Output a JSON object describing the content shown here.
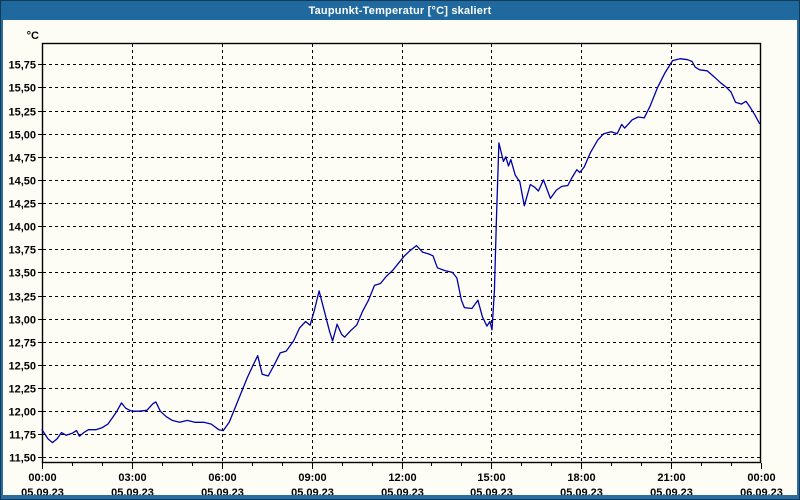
{
  "window": {
    "title": "Taupunkt-Temperatur [°C] skaliert",
    "title_bar_color": "#1f699e",
    "frame_color": "#2a6ba0",
    "outline_color": "#123a58",
    "background_color": "#fdfdf5"
  },
  "chart_data": {
    "type": "line",
    "title": "Taupunkt-Temperatur [°C] skaliert",
    "grid": "dashed",
    "plot_bg": "#fdfdf5",
    "line_color": "#0000aa",
    "y_axis": {
      "unit_label": "°C",
      "ylim": [
        11.44,
        15.98
      ],
      "tick_step": 0.25,
      "ticks": [
        {
          "value": 11.5,
          "label": "11,50"
        },
        {
          "value": 11.75,
          "label": "11,75"
        },
        {
          "value": 12.0,
          "label": "12,00"
        },
        {
          "value": 12.25,
          "label": "12,25"
        },
        {
          "value": 12.5,
          "label": "12,50"
        },
        {
          "value": 12.75,
          "label": "12,75"
        },
        {
          "value": 13.0,
          "label": "13,00"
        },
        {
          "value": 13.25,
          "label": "13,25"
        },
        {
          "value": 13.5,
          "label": "13,50"
        },
        {
          "value": 13.75,
          "label": "13,75"
        },
        {
          "value": 14.0,
          "label": "14,00"
        },
        {
          "value": 14.25,
          "label": "14,25"
        },
        {
          "value": 14.5,
          "label": "14,50"
        },
        {
          "value": 14.75,
          "label": "14,75"
        },
        {
          "value": 15.0,
          "label": "15,00"
        },
        {
          "value": 15.25,
          "label": "15,25"
        },
        {
          "value": 15.5,
          "label": "15,50"
        },
        {
          "value": 15.75,
          "label": "15,75"
        }
      ]
    },
    "x_axis": {
      "xlim_hours": [
        0,
        24
      ],
      "minor_tick_hours": 1,
      "ticks": [
        {
          "hour": 0,
          "time": "00:00",
          "date": "05.09.23"
        },
        {
          "hour": 3,
          "time": "03:00",
          "date": "05.09.23"
        },
        {
          "hour": 6,
          "time": "06:00",
          "date": "05.09.23"
        },
        {
          "hour": 9,
          "time": "09:00",
          "date": "05.09.23"
        },
        {
          "hour": 12,
          "time": "12:00",
          "date": "05.09.23"
        },
        {
          "hour": 15,
          "time": "15:00",
          "date": "05.09.23"
        },
        {
          "hour": 18,
          "time": "18:00",
          "date": "05.09.23"
        },
        {
          "hour": 21,
          "time": "21:00",
          "date": "05.09.23"
        },
        {
          "hour": 24,
          "time": "00:00",
          "date": "06.09.23"
        }
      ]
    },
    "series": [
      {
        "name": "Taupunkt-Temperatur",
        "color": "#0000aa",
        "points": [
          [
            0.0,
            11.8
          ],
          [
            0.2,
            11.7
          ],
          [
            0.35,
            11.66
          ],
          [
            0.5,
            11.7
          ],
          [
            0.65,
            11.77
          ],
          [
            0.8,
            11.74
          ],
          [
            1.0,
            11.76
          ],
          [
            1.15,
            11.79
          ],
          [
            1.25,
            11.73
          ],
          [
            1.4,
            11.77
          ],
          [
            1.55,
            11.8
          ],
          [
            1.8,
            11.8
          ],
          [
            2.0,
            11.82
          ],
          [
            2.2,
            11.86
          ],
          [
            2.35,
            11.93
          ],
          [
            2.5,
            12.0
          ],
          [
            2.65,
            12.09
          ],
          [
            2.8,
            12.03
          ],
          [
            3.0,
            12.0
          ],
          [
            3.25,
            12.0
          ],
          [
            3.5,
            12.01
          ],
          [
            3.7,
            12.08
          ],
          [
            3.8,
            12.1
          ],
          [
            3.95,
            12.0
          ],
          [
            4.15,
            11.94
          ],
          [
            4.35,
            11.9
          ],
          [
            4.6,
            11.88
          ],
          [
            4.85,
            11.9
          ],
          [
            5.1,
            11.88
          ],
          [
            5.4,
            11.88
          ],
          [
            5.65,
            11.86
          ],
          [
            5.9,
            11.8
          ],
          [
            6.05,
            11.79
          ],
          [
            6.25,
            11.88
          ],
          [
            6.4,
            12.0
          ],
          [
            6.6,
            12.16
          ],
          [
            6.85,
            12.36
          ],
          [
            7.05,
            12.5
          ],
          [
            7.2,
            12.6
          ],
          [
            7.35,
            12.4
          ],
          [
            7.55,
            12.38
          ],
          [
            7.75,
            12.5
          ],
          [
            7.95,
            12.63
          ],
          [
            8.15,
            12.65
          ],
          [
            8.4,
            12.76
          ],
          [
            8.6,
            12.9
          ],
          [
            8.8,
            12.97
          ],
          [
            8.95,
            12.93
          ],
          [
            9.1,
            13.1
          ],
          [
            9.25,
            13.3
          ],
          [
            9.45,
            13.05
          ],
          [
            9.6,
            12.86
          ],
          [
            9.7,
            12.76
          ],
          [
            9.85,
            12.94
          ],
          [
            10.0,
            12.83
          ],
          [
            10.1,
            12.8
          ],
          [
            10.3,
            12.87
          ],
          [
            10.5,
            12.93
          ],
          [
            10.7,
            13.08
          ],
          [
            10.9,
            13.2
          ],
          [
            11.1,
            13.36
          ],
          [
            11.3,
            13.38
          ],
          [
            11.5,
            13.46
          ],
          [
            11.7,
            13.52
          ],
          [
            11.9,
            13.6
          ],
          [
            12.1,
            13.68
          ],
          [
            12.3,
            13.74
          ],
          [
            12.5,
            13.79
          ],
          [
            12.7,
            13.72
          ],
          [
            12.9,
            13.7
          ],
          [
            13.05,
            13.68
          ],
          [
            13.2,
            13.55
          ],
          [
            13.45,
            13.52
          ],
          [
            13.7,
            13.5
          ],
          [
            13.85,
            13.44
          ],
          [
            14.0,
            13.2
          ],
          [
            14.1,
            13.12
          ],
          [
            14.35,
            13.11
          ],
          [
            14.55,
            13.2
          ],
          [
            14.7,
            13.02
          ],
          [
            14.85,
            12.92
          ],
          [
            14.95,
            12.97
          ],
          [
            15.02,
            12.88
          ],
          [
            15.1,
            13.3
          ],
          [
            15.17,
            14.1
          ],
          [
            15.25,
            14.9
          ],
          [
            15.4,
            14.7
          ],
          [
            15.48,
            14.75
          ],
          [
            15.57,
            14.65
          ],
          [
            15.65,
            14.72
          ],
          [
            15.8,
            14.55
          ],
          [
            15.95,
            14.48
          ],
          [
            16.1,
            14.22
          ],
          [
            16.3,
            14.45
          ],
          [
            16.45,
            14.42
          ],
          [
            16.57,
            14.38
          ],
          [
            16.74,
            14.5
          ],
          [
            16.97,
            14.3
          ],
          [
            17.17,
            14.39
          ],
          [
            17.35,
            14.43
          ],
          [
            17.55,
            14.44
          ],
          [
            17.7,
            14.53
          ],
          [
            17.85,
            14.61
          ],
          [
            17.95,
            14.58
          ],
          [
            18.1,
            14.64
          ],
          [
            18.3,
            14.79
          ],
          [
            18.55,
            14.93
          ],
          [
            18.75,
            15.0
          ],
          [
            19.0,
            15.02
          ],
          [
            19.2,
            15.0
          ],
          [
            19.35,
            15.1
          ],
          [
            19.45,
            15.06
          ],
          [
            19.7,
            15.15
          ],
          [
            19.9,
            15.18
          ],
          [
            20.1,
            15.17
          ],
          [
            20.3,
            15.3
          ],
          [
            20.55,
            15.5
          ],
          [
            20.8,
            15.66
          ],
          [
            21.05,
            15.79
          ],
          [
            21.3,
            15.81
          ],
          [
            21.55,
            15.8
          ],
          [
            21.7,
            15.78
          ],
          [
            21.8,
            15.72
          ],
          [
            21.95,
            15.69
          ],
          [
            22.2,
            15.68
          ],
          [
            22.45,
            15.61
          ],
          [
            22.65,
            15.55
          ],
          [
            22.85,
            15.5
          ],
          [
            23.0,
            15.45
          ],
          [
            23.15,
            15.34
          ],
          [
            23.35,
            15.32
          ],
          [
            23.5,
            15.35
          ],
          [
            23.65,
            15.28
          ],
          [
            23.8,
            15.2
          ],
          [
            23.95,
            15.11
          ]
        ]
      }
    ]
  }
}
